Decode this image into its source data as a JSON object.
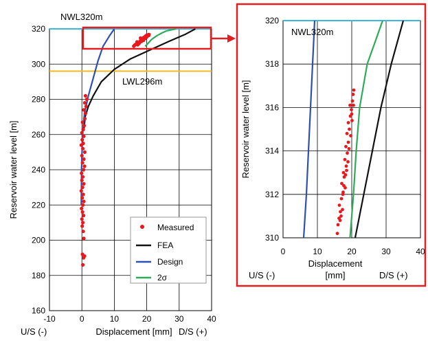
{
  "chart_data": [
    {
      "type": "scatter",
      "id": "main",
      "xlabel": "Displacement [mm]",
      "xlabel_left": "U/S (-)",
      "xlabel_right": "D/S (+)",
      "ylabel": "Reservoir water level [m]",
      "xlim": [
        -10,
        40
      ],
      "ylim": [
        160,
        320
      ],
      "x_ticks": [
        -10,
        0,
        10,
        20,
        30,
        40
      ],
      "y_ticks": [
        160,
        180,
        200,
        220,
        240,
        260,
        280,
        300,
        320
      ],
      "grid": true,
      "legend_position": "bottom-right",
      "reference_lines": [
        {
          "name": "NWL320m",
          "y": 320,
          "color": "#3bb8e0"
        },
        {
          "name": "LWL296m",
          "y": 296,
          "color": "#f2b81e"
        }
      ],
      "series": [
        {
          "name": "Measured",
          "type": "scatter",
          "color": "#e8191e",
          "points": [
            [
              0.3,
              186
            ],
            [
              0.5,
              190
            ],
            [
              0.8,
              191
            ],
            [
              0.2,
              192
            ],
            [
              0.6,
              201
            ],
            [
              0.4,
              205
            ],
            [
              0.1,
              208
            ],
            [
              0.3,
              210
            ],
            [
              0.0,
              212
            ],
            [
              0.5,
              214
            ],
            [
              0.2,
              216
            ],
            [
              -0.1,
              218
            ],
            [
              0.3,
              220
            ],
            [
              0.6,
              222
            ],
            [
              0.1,
              224
            ],
            [
              0.4,
              226
            ],
            [
              -0.2,
              228
            ],
            [
              0.2,
              230
            ],
            [
              0.6,
              232
            ],
            [
              0.0,
              234
            ],
            [
              0.3,
              236
            ],
            [
              -0.1,
              238
            ],
            [
              0.5,
              240
            ],
            [
              0.8,
              242
            ],
            [
              0.2,
              244
            ],
            [
              0.6,
              246
            ],
            [
              0.0,
              248
            ],
            [
              0.9,
              250
            ],
            [
              0.3,
              252
            ],
            [
              -0.2,
              254
            ],
            [
              0.4,
              255
            ],
            [
              0.1,
              257
            ],
            [
              0.6,
              259
            ],
            [
              0.0,
              261
            ],
            [
              0.4,
              263
            ],
            [
              0.7,
              265
            ],
            [
              0.2,
              267
            ],
            [
              0.9,
              269
            ],
            [
              1.1,
              272
            ],
            [
              0.6,
              274
            ],
            [
              1.3,
              276
            ],
            [
              0.9,
              278
            ],
            [
              1.5,
              280
            ],
            [
              1.1,
              282
            ],
            [
              16.0,
              310.2
            ],
            [
              16.3,
              310.8
            ],
            [
              16.8,
              311.4
            ],
            [
              17.2,
              311.0
            ],
            [
              17.5,
              312.0
            ],
            [
              17.0,
              312.6
            ],
            [
              18.0,
              313.1
            ],
            [
              17.8,
              312.3
            ],
            [
              18.3,
              313.6
            ],
            [
              18.6,
              314.2
            ],
            [
              18.1,
              314.8
            ],
            [
              19.0,
              315.0
            ],
            [
              19.4,
              315.5
            ],
            [
              19.0,
              313.5
            ],
            [
              19.7,
              316.0
            ],
            [
              20.0,
              316.4
            ],
            [
              20.4,
              316.6
            ],
            [
              20.1,
              315.8
            ],
            [
              20.7,
              316.8
            ],
            [
              19.5,
              314.6
            ],
            [
              18.7,
              313.9
            ],
            [
              17.6,
              311.7
            ],
            [
              16.6,
              311.2
            ],
            [
              20.6,
              316.2
            ],
            [
              19.9,
              315.2
            ],
            [
              18.4,
              312.9
            ]
          ]
        },
        {
          "name": "FEA",
          "type": "line",
          "color": "#111111",
          "points": [
            [
              0.6,
              262
            ],
            [
              1.0,
              270
            ],
            [
              2.0,
              276
            ],
            [
              3.5,
              282
            ],
            [
              6.0,
              290
            ],
            [
              10.0,
              297
            ],
            [
              15.0,
              303
            ],
            [
              21.0,
              308
            ],
            [
              27.0,
              313
            ],
            [
              32.0,
              317
            ],
            [
              35.0,
              320
            ]
          ]
        },
        {
          "name": "Design",
          "type": "line",
          "color": "#2f4fb0",
          "points": [
            [
              -0.2,
              220
            ],
            [
              -0.1,
              240
            ],
            [
              0.2,
              260
            ],
            [
              0.8,
              272
            ],
            [
              2.0,
              282
            ],
            [
              3.5,
              292
            ],
            [
              5.0,
              302
            ],
            [
              6.5,
              310
            ],
            [
              8.5,
              316
            ],
            [
              10.0,
              320
            ]
          ]
        },
        {
          "name": "2σ",
          "type": "line",
          "color": "#2eaa5a",
          "points": [
            [
              19.5,
              310
            ],
            [
              20.5,
              312
            ],
            [
              21.5,
              314
            ],
            [
              23.0,
              316
            ],
            [
              24.5,
              317.5
            ],
            [
              26.0,
              318.8
            ],
            [
              29.0,
              320
            ]
          ]
        }
      ]
    },
    {
      "type": "scatter",
      "id": "zoom",
      "xlabel": "Displacement",
      "xlabel_unit": "[mm]",
      "xlabel_left": "U/S (-)",
      "xlabel_right": "D/S (+)",
      "ylabel": "Reservoir water level [m]",
      "xlim": [
        0,
        40
      ],
      "ylim": [
        310,
        320
      ],
      "x_ticks": [
        0,
        10,
        20,
        30,
        40
      ],
      "y_ticks": [
        310,
        312,
        314,
        316,
        318,
        320
      ],
      "grid": true,
      "reference_lines": [
        {
          "name": "NWL320m",
          "y": 320,
          "color": "#3bb8e0"
        }
      ],
      "series": [
        {
          "name": "Measured",
          "type": "scatter",
          "color": "#e8191e",
          "points": [
            [
              15.8,
              310.2
            ],
            [
              16.0,
              310.6
            ],
            [
              16.3,
              310.9
            ],
            [
              16.7,
              311.2
            ],
            [
              16.4,
              311.5
            ],
            [
              17.0,
              311.8
            ],
            [
              17.3,
              311.3
            ],
            [
              17.5,
              312.1
            ],
            [
              17.1,
              312.5
            ],
            [
              17.8,
              312.8
            ],
            [
              18.1,
              312.3
            ],
            [
              17.6,
              313.0
            ],
            [
              18.4,
              313.3
            ],
            [
              18.0,
              313.6
            ],
            [
              18.7,
              313.9
            ],
            [
              18.3,
              314.2
            ],
            [
              19.0,
              314.4
            ],
            [
              18.6,
              314.8
            ],
            [
              19.3,
              315.0
            ],
            [
              19.0,
              315.3
            ],
            [
              19.6,
              315.6
            ],
            [
              19.9,
              315.9
            ],
            [
              19.5,
              316.1
            ],
            [
              20.2,
              316.3
            ],
            [
              20.4,
              316.6
            ],
            [
              20.6,
              316.8
            ],
            [
              20.1,
              315.4
            ],
            [
              19.7,
              314.7
            ],
            [
              18.9,
              313.5
            ],
            [
              18.2,
              312.9
            ],
            [
              17.4,
              312.0
            ],
            [
              16.9,
              311.0
            ],
            [
              20.5,
              316.1
            ],
            [
              20.0,
              315.7
            ],
            [
              19.2,
              314.1
            ],
            [
              18.5,
              313.1
            ],
            [
              17.7,
              312.4
            ],
            [
              16.6,
              310.8
            ]
          ]
        },
        {
          "name": "FEA",
          "type": "line",
          "color": "#111111",
          "points": [
            [
              21.0,
              310
            ],
            [
              23.5,
              312
            ],
            [
              26.0,
              314
            ],
            [
              28.5,
              316
            ],
            [
              31.5,
              318
            ],
            [
              35.0,
              320
            ]
          ]
        },
        {
          "name": "Design",
          "type": "line",
          "color": "#2f4fb0",
          "points": [
            [
              6.0,
              310
            ],
            [
              6.8,
              312
            ],
            [
              7.4,
              314
            ],
            [
              8.0,
              316
            ],
            [
              8.6,
              318
            ],
            [
              9.2,
              320
            ]
          ]
        },
        {
          "name": "2σ",
          "type": "line",
          "color": "#2eaa5a",
          "points": [
            [
              19.5,
              310
            ],
            [
              20.5,
              312
            ],
            [
              21.3,
              314
            ],
            [
              22.3,
              316
            ],
            [
              24.5,
              318
            ],
            [
              29.0,
              320
            ]
          ]
        }
      ]
    }
  ],
  "callout": {
    "box_color": "#e02020"
  }
}
